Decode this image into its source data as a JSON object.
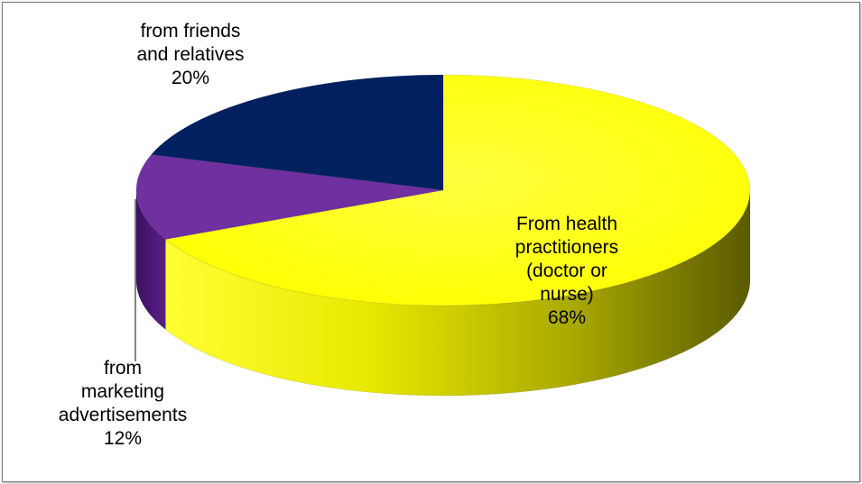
{
  "chart_data": {
    "type": "pie",
    "style": "3d",
    "title": "",
    "slices": [
      {
        "label_lines": [
          "From health",
          "practitioners",
          "(doctor or",
          "nurse)"
        ],
        "label": "From health practitioners (doctor or nurse)",
        "value": 68,
        "percent_label": "68%",
        "color": "#ffff00"
      },
      {
        "label_lines": [
          "from",
          "marketing",
          "advertisements"
        ],
        "label": "from marketing advertisements",
        "value": 12,
        "percent_label": "12%",
        "color": "#7030a0"
      },
      {
        "label_lines": [
          "from friends",
          "and relatives"
        ],
        "label": "from friends and relatives",
        "value": 20,
        "percent_label": "20%",
        "color": "#002060"
      }
    ]
  }
}
